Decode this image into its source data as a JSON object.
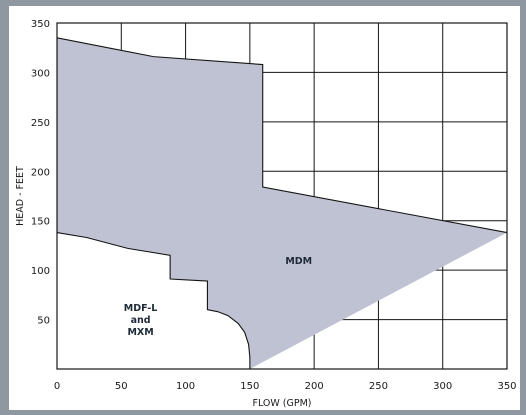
{
  "chart_data": {
    "type": "area",
    "xlabel": "FLOW (GPM)",
    "ylabel": "HEAD - FEET",
    "xlim": [
      0,
      350
    ],
    "ylim": [
      0,
      350
    ],
    "xticks": [
      0,
      50,
      100,
      150,
      200,
      250,
      300,
      350
    ],
    "yticks": [
      50,
      100,
      150,
      200,
      250,
      300,
      350
    ],
    "grid": true,
    "colors": {
      "fill": "#bfc2d2",
      "outline": "#141414",
      "frame": "#8f97a1"
    },
    "regions": [
      {
        "label_lines": [
          "MDM"
        ],
        "label_at": [
          188,
          110
        ],
        "upper": [
          [
            0,
            335
          ],
          [
            75,
            316
          ],
          [
            160,
            308
          ],
          [
            160,
            184
          ],
          [
            350,
            138
          ]
        ],
        "lower": [
          [
            0,
            138
          ],
          [
            23,
            133
          ],
          [
            55,
            122
          ],
          [
            88,
            115
          ],
          [
            88,
            91
          ],
          [
            117,
            89
          ],
          [
            117,
            60
          ],
          [
            125,
            58
          ],
          [
            133,
            54
          ],
          [
            141,
            46
          ],
          [
            146,
            37
          ],
          [
            149,
            25
          ],
          [
            150,
            12
          ],
          [
            150,
            0
          ]
        ]
      },
      {
        "label_lines": [
          "MDF-L",
          "and",
          "MXM"
        ],
        "label_at": [
          65,
          50
        ],
        "upper": [
          [
            0,
            138
          ],
          [
            23,
            133
          ],
          [
            55,
            122
          ],
          [
            88,
            115
          ],
          [
            88,
            91
          ],
          [
            117,
            89
          ],
          [
            117,
            60
          ],
          [
            125,
            58
          ],
          [
            133,
            54
          ],
          [
            141,
            46
          ],
          [
            146,
            37
          ],
          [
            149,
            25
          ],
          [
            150,
            12
          ],
          [
            150,
            0
          ]
        ]
      }
    ]
  }
}
